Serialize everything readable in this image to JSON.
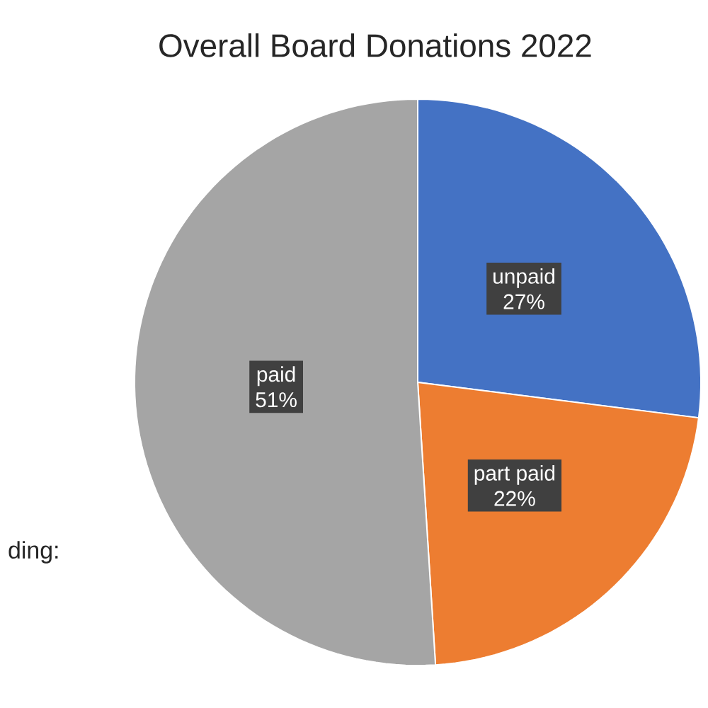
{
  "chart_data": {
    "type": "pie",
    "title": "Overall Board Donations 2022",
    "categories": [
      "unpaid",
      "part paid",
      "paid"
    ],
    "values": [
      27,
      22,
      51
    ],
    "colors": [
      "#4472c4",
      "#ed7d31",
      "#a5a5a5"
    ],
    "value_labels": [
      "27%",
      "22%",
      "51%"
    ],
    "annotations": [
      "ding:"
    ]
  }
}
